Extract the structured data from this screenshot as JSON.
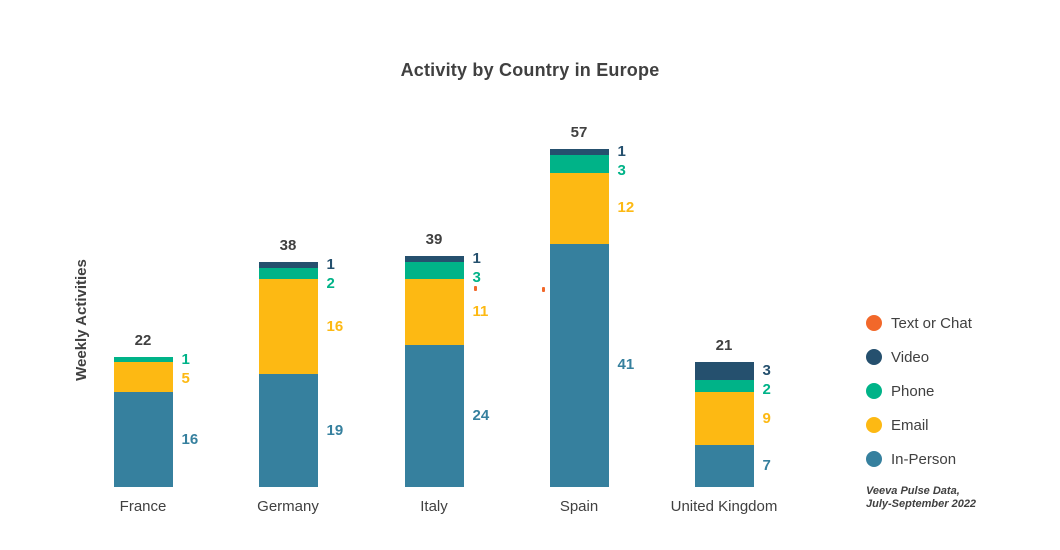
{
  "page": {
    "background": "#FFFFFF",
    "text_color": "#404040"
  },
  "title": "Activity by Country in Europe",
  "y_axis_label": "Weekly Activities",
  "source_note": {
    "line1": "Veeva Pulse Data,",
    "line2": "July-September 2022"
  },
  "legend": {
    "position": "right",
    "items": [
      {
        "label": "Text or Chat",
        "color": "#F2682A"
      },
      {
        "label": "Video",
        "color": "#25506E"
      },
      {
        "label": "Phone",
        "color": "#00B388"
      },
      {
        "label": "Email",
        "color": "#FDB913"
      },
      {
        "label": "In-Person",
        "color": "#36809E"
      }
    ]
  },
  "chart_data": {
    "type": "bar",
    "stacked": true,
    "title": "Activity by Country in Europe",
    "xlabel": "",
    "ylabel": "Weekly Activities",
    "categories": [
      "France",
      "Germany",
      "Italy",
      "Spain",
      "United Kingdom"
    ],
    "series": [
      {
        "name": "In-Person",
        "color": "#36809E",
        "values": [
          16,
          19,
          24,
          41,
          7
        ]
      },
      {
        "name": "Email",
        "color": "#FDB913",
        "values": [
          5,
          16,
          11,
          12,
          9
        ]
      },
      {
        "name": "Phone",
        "color": "#00B388",
        "values": [
          1,
          2,
          3,
          3,
          2
        ]
      },
      {
        "name": "Video",
        "color": "#25506E",
        "values": [
          0,
          1,
          1,
          1,
          3
        ]
      },
      {
        "name": "Text or Chat",
        "color": "#F2682A",
        "values": [
          0,
          0,
          0,
          0,
          0
        ]
      }
    ],
    "totals": [
      22,
      38,
      39,
      57,
      21
    ],
    "ylim": [
      0,
      57
    ],
    "grid": false,
    "y_axis_ticks": "none",
    "legend_position": "right",
    "data_labels": "segment values right of bars, totals above bars"
  },
  "stray_marks": [
    {
      "near_category": "Italy",
      "color": "#F2682A"
    },
    {
      "near_category": "Spain",
      "color": "#F2682A"
    }
  ]
}
